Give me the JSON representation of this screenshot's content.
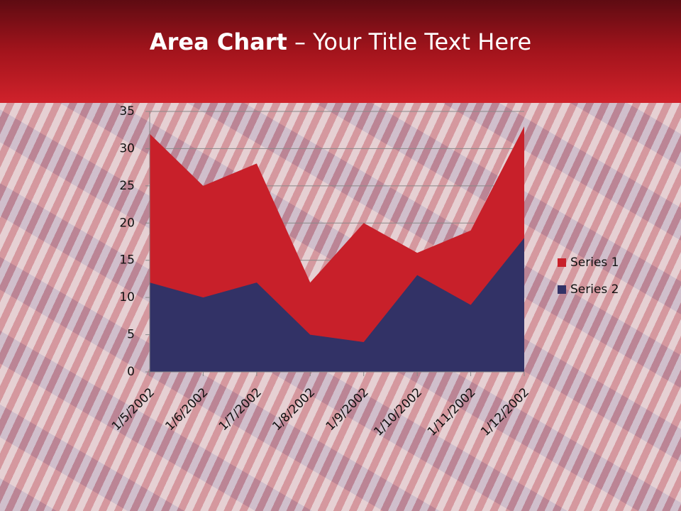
{
  "title": {
    "bold": "Area Chart",
    "rest": "– Your Title Text Here"
  },
  "chart_data": {
    "type": "area",
    "categories": [
      "1/5/2002",
      "1/6/2002",
      "1/7/2002",
      "1/8/2002",
      "1/9/2002",
      "1/10/2002",
      "1/11/2002",
      "1/12/2002"
    ],
    "series": [
      {
        "name": "Series 1",
        "color": "#c8202a",
        "values": [
          32,
          25,
          28,
          12,
          20,
          16,
          19,
          33
        ]
      },
      {
        "name": "Series 2",
        "color": "#323266",
        "values": [
          12,
          10,
          12,
          5,
          4,
          13,
          9,
          18
        ]
      }
    ],
    "ylim": [
      0,
      35
    ],
    "yticks": [
      0,
      5,
      10,
      15,
      20,
      25,
      30,
      35
    ],
    "grid": true,
    "legend": "right"
  }
}
